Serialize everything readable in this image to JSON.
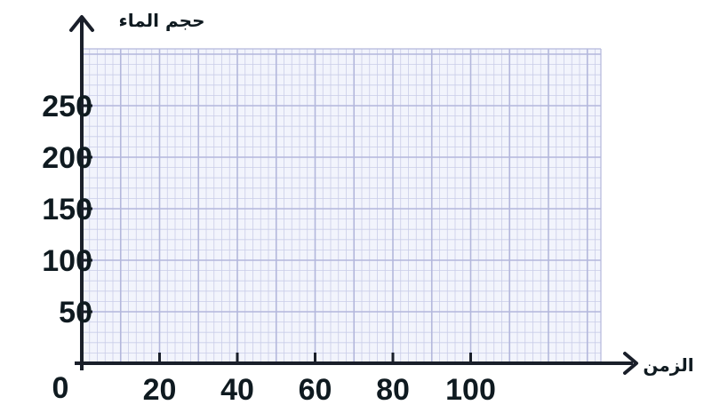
{
  "chart_data": {
    "type": "scatter",
    "title": "",
    "xlabel": "الزمن",
    "ylabel": "حجم الماء",
    "xlim": [
      0,
      110
    ],
    "ylim": [
      0,
      250
    ],
    "origin_label": "0",
    "x_ticks": [
      "20",
      "40",
      "60",
      "80",
      "100"
    ],
    "y_ticks": [
      "50",
      "100",
      "150",
      "200",
      "250"
    ],
    "x_tick_values": [
      20,
      40,
      60,
      80,
      100
    ],
    "y_tick_values": [
      50,
      100,
      150,
      200,
      250
    ],
    "series": [],
    "grid": true,
    "colors": {
      "paper": "#f2f4fc",
      "grid_minor": "#c9cde8",
      "grid_major": "#b3b7dc",
      "axis": "#1a1f2a"
    }
  }
}
